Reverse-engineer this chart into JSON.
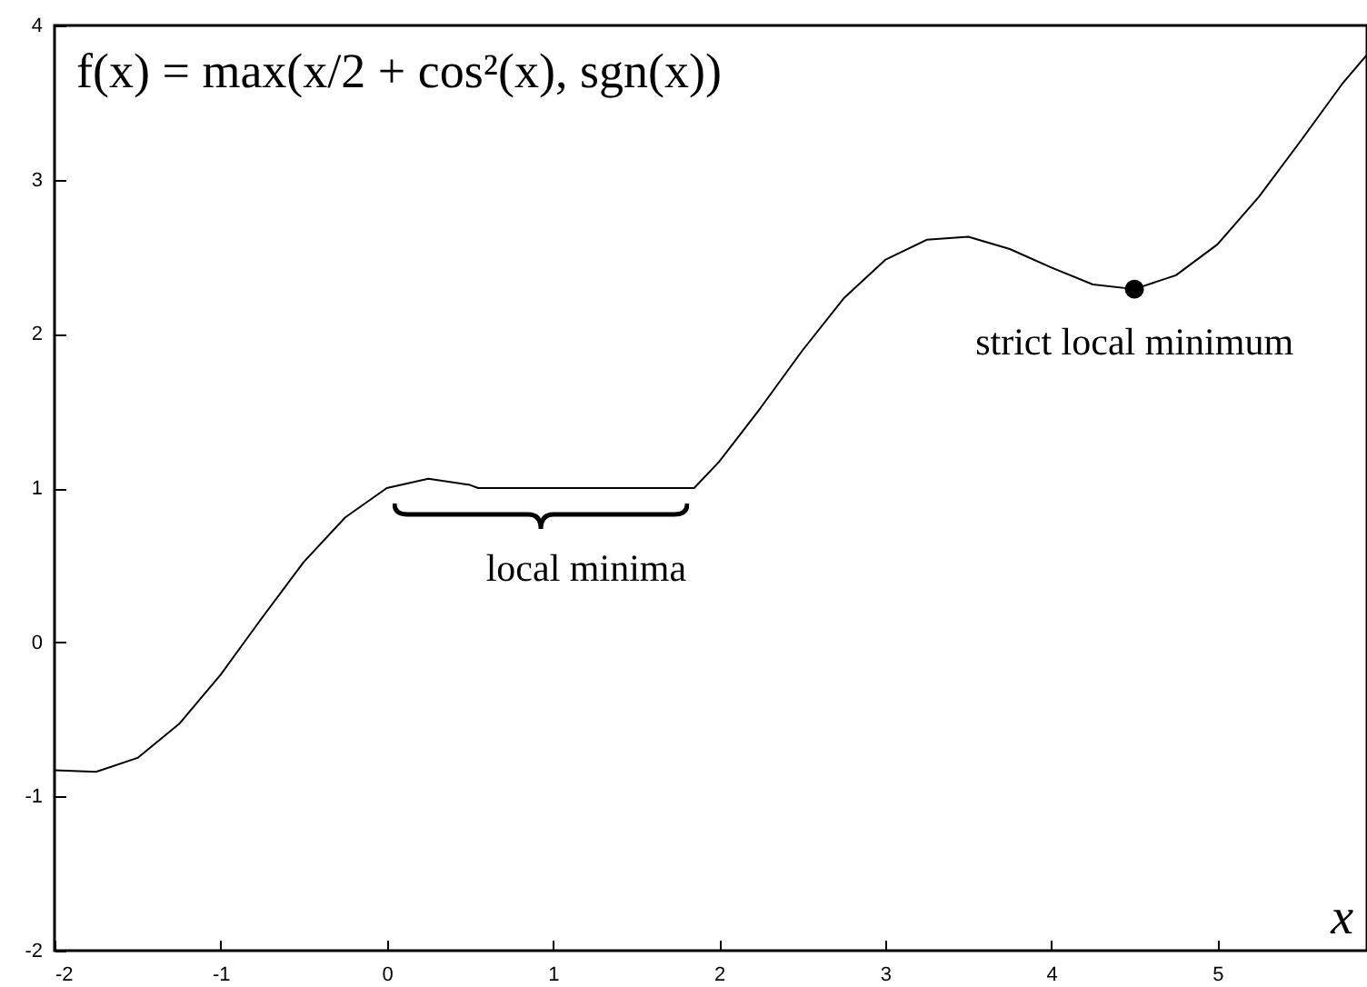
{
  "chart_data": {
    "type": "line",
    "title": "f(x) = max(x/2 + cos²(x), sgn(x))",
    "xlabel": "x",
    "xlim": [
      -2,
      5.9
    ],
    "xticks": [
      -2,
      -1,
      0,
      1,
      2,
      3,
      4,
      5
    ],
    "ylim": [
      -2,
      4
    ],
    "yticks": [
      -2,
      -1,
      0,
      1,
      2,
      3,
      4
    ],
    "grid": false,
    "marker": "none",
    "line_style": "solid",
    "series": [
      {
        "color": "#000000",
        "x": [
          -2,
          -1.75,
          -1.5,
          -1.25,
          -1,
          -0.75,
          -0.5,
          -0.25,
          0,
          0.25,
          0.5,
          0.55,
          0.75,
          1,
          1.25,
          1.5,
          1.85,
          2,
          2.25,
          2.5,
          2.75,
          3,
          3.25,
          3.5,
          3.75,
          4,
          4.25,
          4.5,
          4.75,
          5,
          5.25,
          5.5,
          5.75,
          5.9
        ],
        "values": [
          -0.83,
          -0.84,
          -0.75,
          -0.53,
          -0.21,
          0.16,
          0.52,
          0.81,
          1,
          1.06,
          1.02,
          1,
          1,
          1,
          1,
          1,
          1,
          1.17,
          1.52,
          1.89,
          2.23,
          2.48,
          2.61,
          2.63,
          2.55,
          2.43,
          2.32,
          2.29,
          2.38,
          2.58,
          2.89,
          3.25,
          3.62,
          3.81
        ]
      },
      {
        "type": "scatter",
        "color": "#000000",
        "marker": "circle",
        "x": [
          4.5
        ],
        "values": [
          2.29
        ]
      }
    ],
    "annotations": [
      {
        "text": "strict local minimum",
        "x": 4.5,
        "y": 2.29
      },
      {
        "text": "local minima",
        "x": 1.2,
        "y": 1
      }
    ]
  }
}
